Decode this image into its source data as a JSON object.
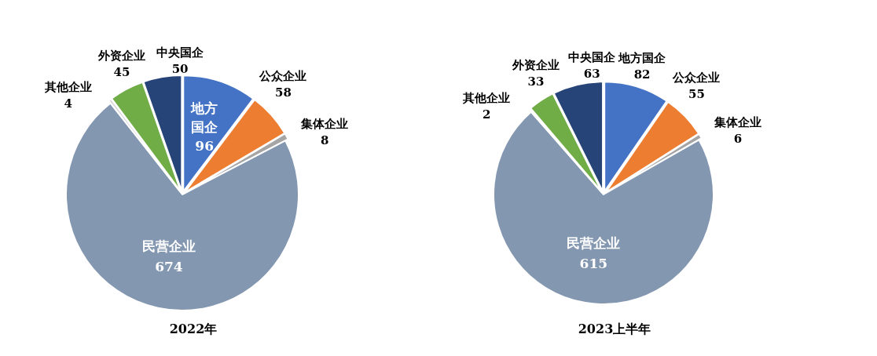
{
  "chart_data": [
    {
      "type": "pie",
      "title": "2022年",
      "data_labels": true,
      "categories": [
        "地方国企",
        "公众企业",
        "集体企业",
        "民营企业",
        "其他企业",
        "外资企业",
        "中央国企"
      ],
      "values": [
        96,
        58,
        8,
        674,
        4,
        45,
        50
      ],
      "colors": [
        "#4472c4",
        "#ed7d31",
        "#a5a5a5",
        "#8497b0",
        "#d9d9d9",
        "#70ad47",
        "#264478"
      ]
    },
    {
      "type": "pie",
      "title": "2023上半年",
      "data_labels": true,
      "categories": [
        "地方国企",
        "公众企业",
        "集体企业",
        "民营企业",
        "其他企业",
        "外资企业",
        "中央国企"
      ],
      "values": [
        82,
        55,
        6,
        615,
        2,
        33,
        63
      ],
      "colors": [
        "#4472c4",
        "#ed7d31",
        "#a5a5a5",
        "#8497b0",
        "#d9d9d9",
        "#70ad47",
        "#264478"
      ]
    }
  ]
}
